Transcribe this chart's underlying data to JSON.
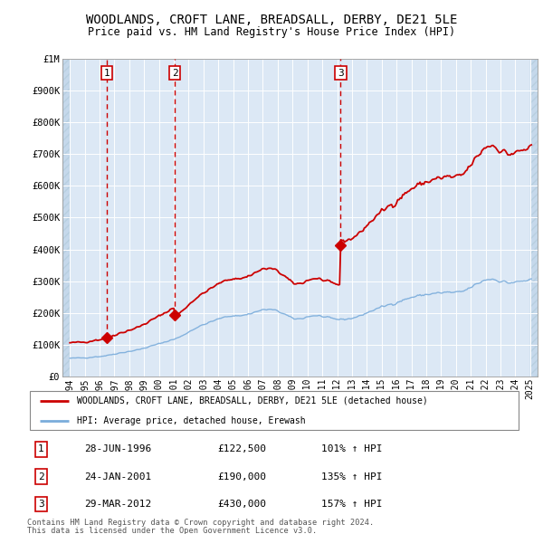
{
  "title": "WOODLANDS, CROFT LANE, BREADSALL, DERBY, DE21 5LE",
  "subtitle": "Price paid vs. HM Land Registry's House Price Index (HPI)",
  "transactions": [
    {
      "num": 1,
      "date_label": "28-JUN-1996",
      "price": 122500,
      "pct": "101%",
      "x": 1996.49
    },
    {
      "num": 2,
      "date_label": "24-JAN-2001",
      "price": 190000,
      "pct": "135%",
      "x": 2001.07
    },
    {
      "num": 3,
      "date_label": "29-MAR-2012",
      "price": 430000,
      "pct": "157%",
      "x": 2012.24
    }
  ],
  "legend_line1": "WOODLANDS, CROFT LANE, BREADSALL, DERBY, DE21 5LE (detached house)",
  "legend_line2": "HPI: Average price, detached house, Erewash",
  "footer1": "Contains HM Land Registry data © Crown copyright and database right 2024.",
  "footer2": "This data is licensed under the Open Government Licence v3.0.",
  "hpi_color": "#7aacdb",
  "price_color": "#cc0000",
  "dashed_color": "#cc0000",
  "label_color": "#cc0000",
  "background_plot": "#dce8f5",
  "background_hatch_color": "#c5d8eb",
  "ylim": [
    0,
    1000000
  ],
  "xlim": [
    1993.5,
    2025.5
  ],
  "yticks": [
    0,
    100000,
    200000,
    300000,
    400000,
    500000,
    600000,
    700000,
    800000,
    900000,
    1000000
  ],
  "ytick_labels": [
    "£0",
    "£100K",
    "£200K",
    "£300K",
    "£400K",
    "£500K",
    "£600K",
    "£700K",
    "£800K",
    "£900K",
    "£1M"
  ],
  "xticks": [
    1994,
    1995,
    1996,
    1997,
    1998,
    1999,
    2000,
    2001,
    2002,
    2003,
    2004,
    2005,
    2006,
    2007,
    2008,
    2009,
    2010,
    2011,
    2012,
    2013,
    2014,
    2015,
    2016,
    2017,
    2018,
    2019,
    2020,
    2021,
    2022,
    2023,
    2024,
    2025
  ],
  "t1_x": 1996.49,
  "t1_p": 122500,
  "t2_x": 2001.07,
  "t2_p": 190000,
  "t3_x": 2012.24,
  "t3_p": 430000
}
